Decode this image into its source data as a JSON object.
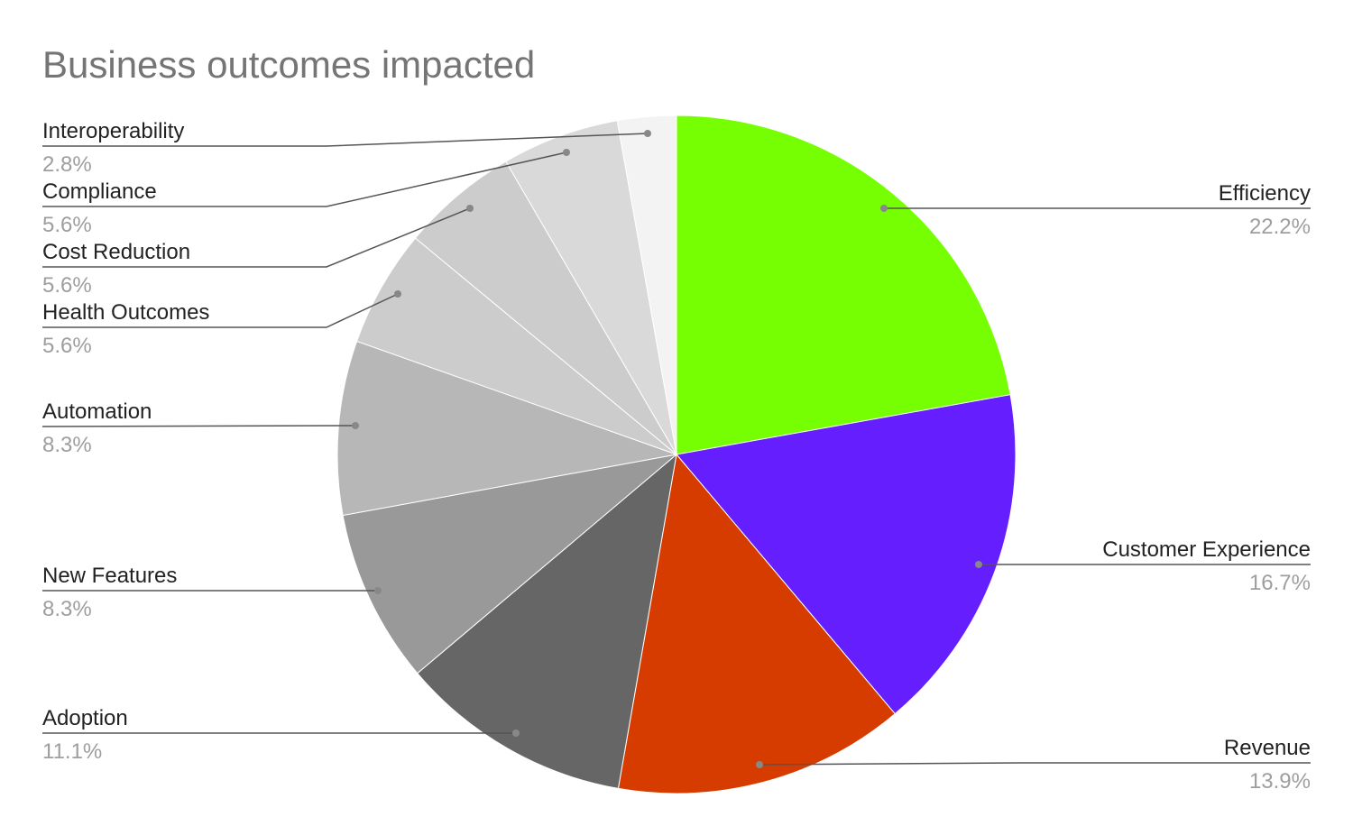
{
  "chart_data": {
    "type": "pie",
    "title": "Business outcomes impacted",
    "slices": [
      {
        "label": "Efficiency",
        "value": 22.2,
        "pct_text": "22.2%",
        "color": "#76ff03"
      },
      {
        "label": "Customer Experience",
        "value": 16.7,
        "pct_text": "16.7%",
        "color": "#651fff"
      },
      {
        "label": "Revenue",
        "value": 13.9,
        "pct_text": "13.9%",
        "color": "#d63c00"
      },
      {
        "label": "Adoption",
        "value": 11.1,
        "pct_text": "11.1%",
        "color": "#666666"
      },
      {
        "label": "New Features",
        "value": 8.3,
        "pct_text": "8.3%",
        "color": "#999999"
      },
      {
        "label": "Automation",
        "value": 8.3,
        "pct_text": "8.3%",
        "color": "#b7b7b7"
      },
      {
        "label": "Health Outcomes",
        "value": 5.6,
        "pct_text": "5.6%",
        "color": "#cccccc"
      },
      {
        "label": "Cost Reduction",
        "value": 5.6,
        "pct_text": "5.6%",
        "color": "#cccccc"
      },
      {
        "label": "Compliance",
        "value": 5.6,
        "pct_text": "5.6%",
        "color": "#d9d9d9"
      },
      {
        "label": "Interoperability",
        "value": 2.8,
        "pct_text": "2.8%",
        "color": "#f3f3f3"
      }
    ]
  }
}
